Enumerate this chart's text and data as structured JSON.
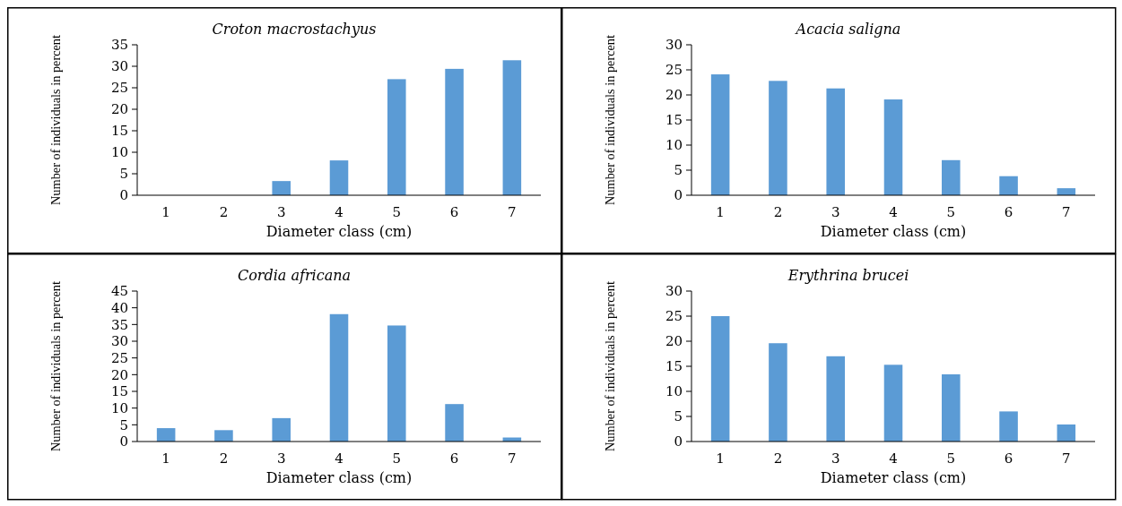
{
  "chart_data": [
    {
      "type": "bar",
      "title": "Croton macrostachyus",
      "xlabel": "Diameter class (cm)",
      "ylabel": "Number of individuals in percent",
      "categories": [
        "1",
        "2",
        "3",
        "4",
        "5",
        "6",
        "7"
      ],
      "values": [
        0,
        0,
        3.3,
        8.1,
        27,
        29.4,
        31.4
      ],
      "color": "#5b9bd5",
      "ylim": [
        0,
        35
      ],
      "yticks": [
        0,
        5,
        10,
        15,
        20,
        25,
        30,
        35
      ],
      "grid": false
    },
    {
      "type": "bar",
      "title": "Acacia saligna",
      "xlabel": "Diameter class (cm)",
      "ylabel": "Number of individuals in percent",
      "categories": [
        "1",
        "2",
        "3",
        "4",
        "5",
        "6",
        "7"
      ],
      "values": [
        24.1,
        22.8,
        21.3,
        19.1,
        7,
        3.8,
        1.4
      ],
      "color": "#5b9bd5",
      "ylim": [
        0,
        30
      ],
      "yticks": [
        0,
        5,
        10,
        15,
        20,
        25,
        30
      ],
      "grid": false
    },
    {
      "type": "bar",
      "title": "Cordia africana",
      "xlabel": "Diameter class (cm)",
      "ylabel": "Number of individuals in percent",
      "categories": [
        "1",
        "2",
        "3",
        "4",
        "5",
        "6",
        "7"
      ],
      "values": [
        4,
        3.4,
        7,
        38.1,
        34.7,
        11.2,
        1.2
      ],
      "color": "#5b9bd5",
      "ylim": [
        0,
        45
      ],
      "yticks": [
        0,
        5,
        10,
        15,
        20,
        25,
        30,
        35,
        40,
        45
      ],
      "grid": false
    },
    {
      "type": "bar",
      "title": "Erythrina brucei",
      "xlabel": "Diameter class (cm)",
      "ylabel": "Number of individuals in percent",
      "categories": [
        "1",
        "2",
        "3",
        "4",
        "5",
        "6",
        "7"
      ],
      "values": [
        25,
        19.6,
        17,
        15.3,
        13.4,
        6,
        3.4
      ],
      "color": "#5b9bd5",
      "ylim": [
        0,
        30
      ],
      "yticks": [
        0,
        5,
        10,
        15,
        20,
        25,
        30
      ],
      "grid": false
    }
  ]
}
